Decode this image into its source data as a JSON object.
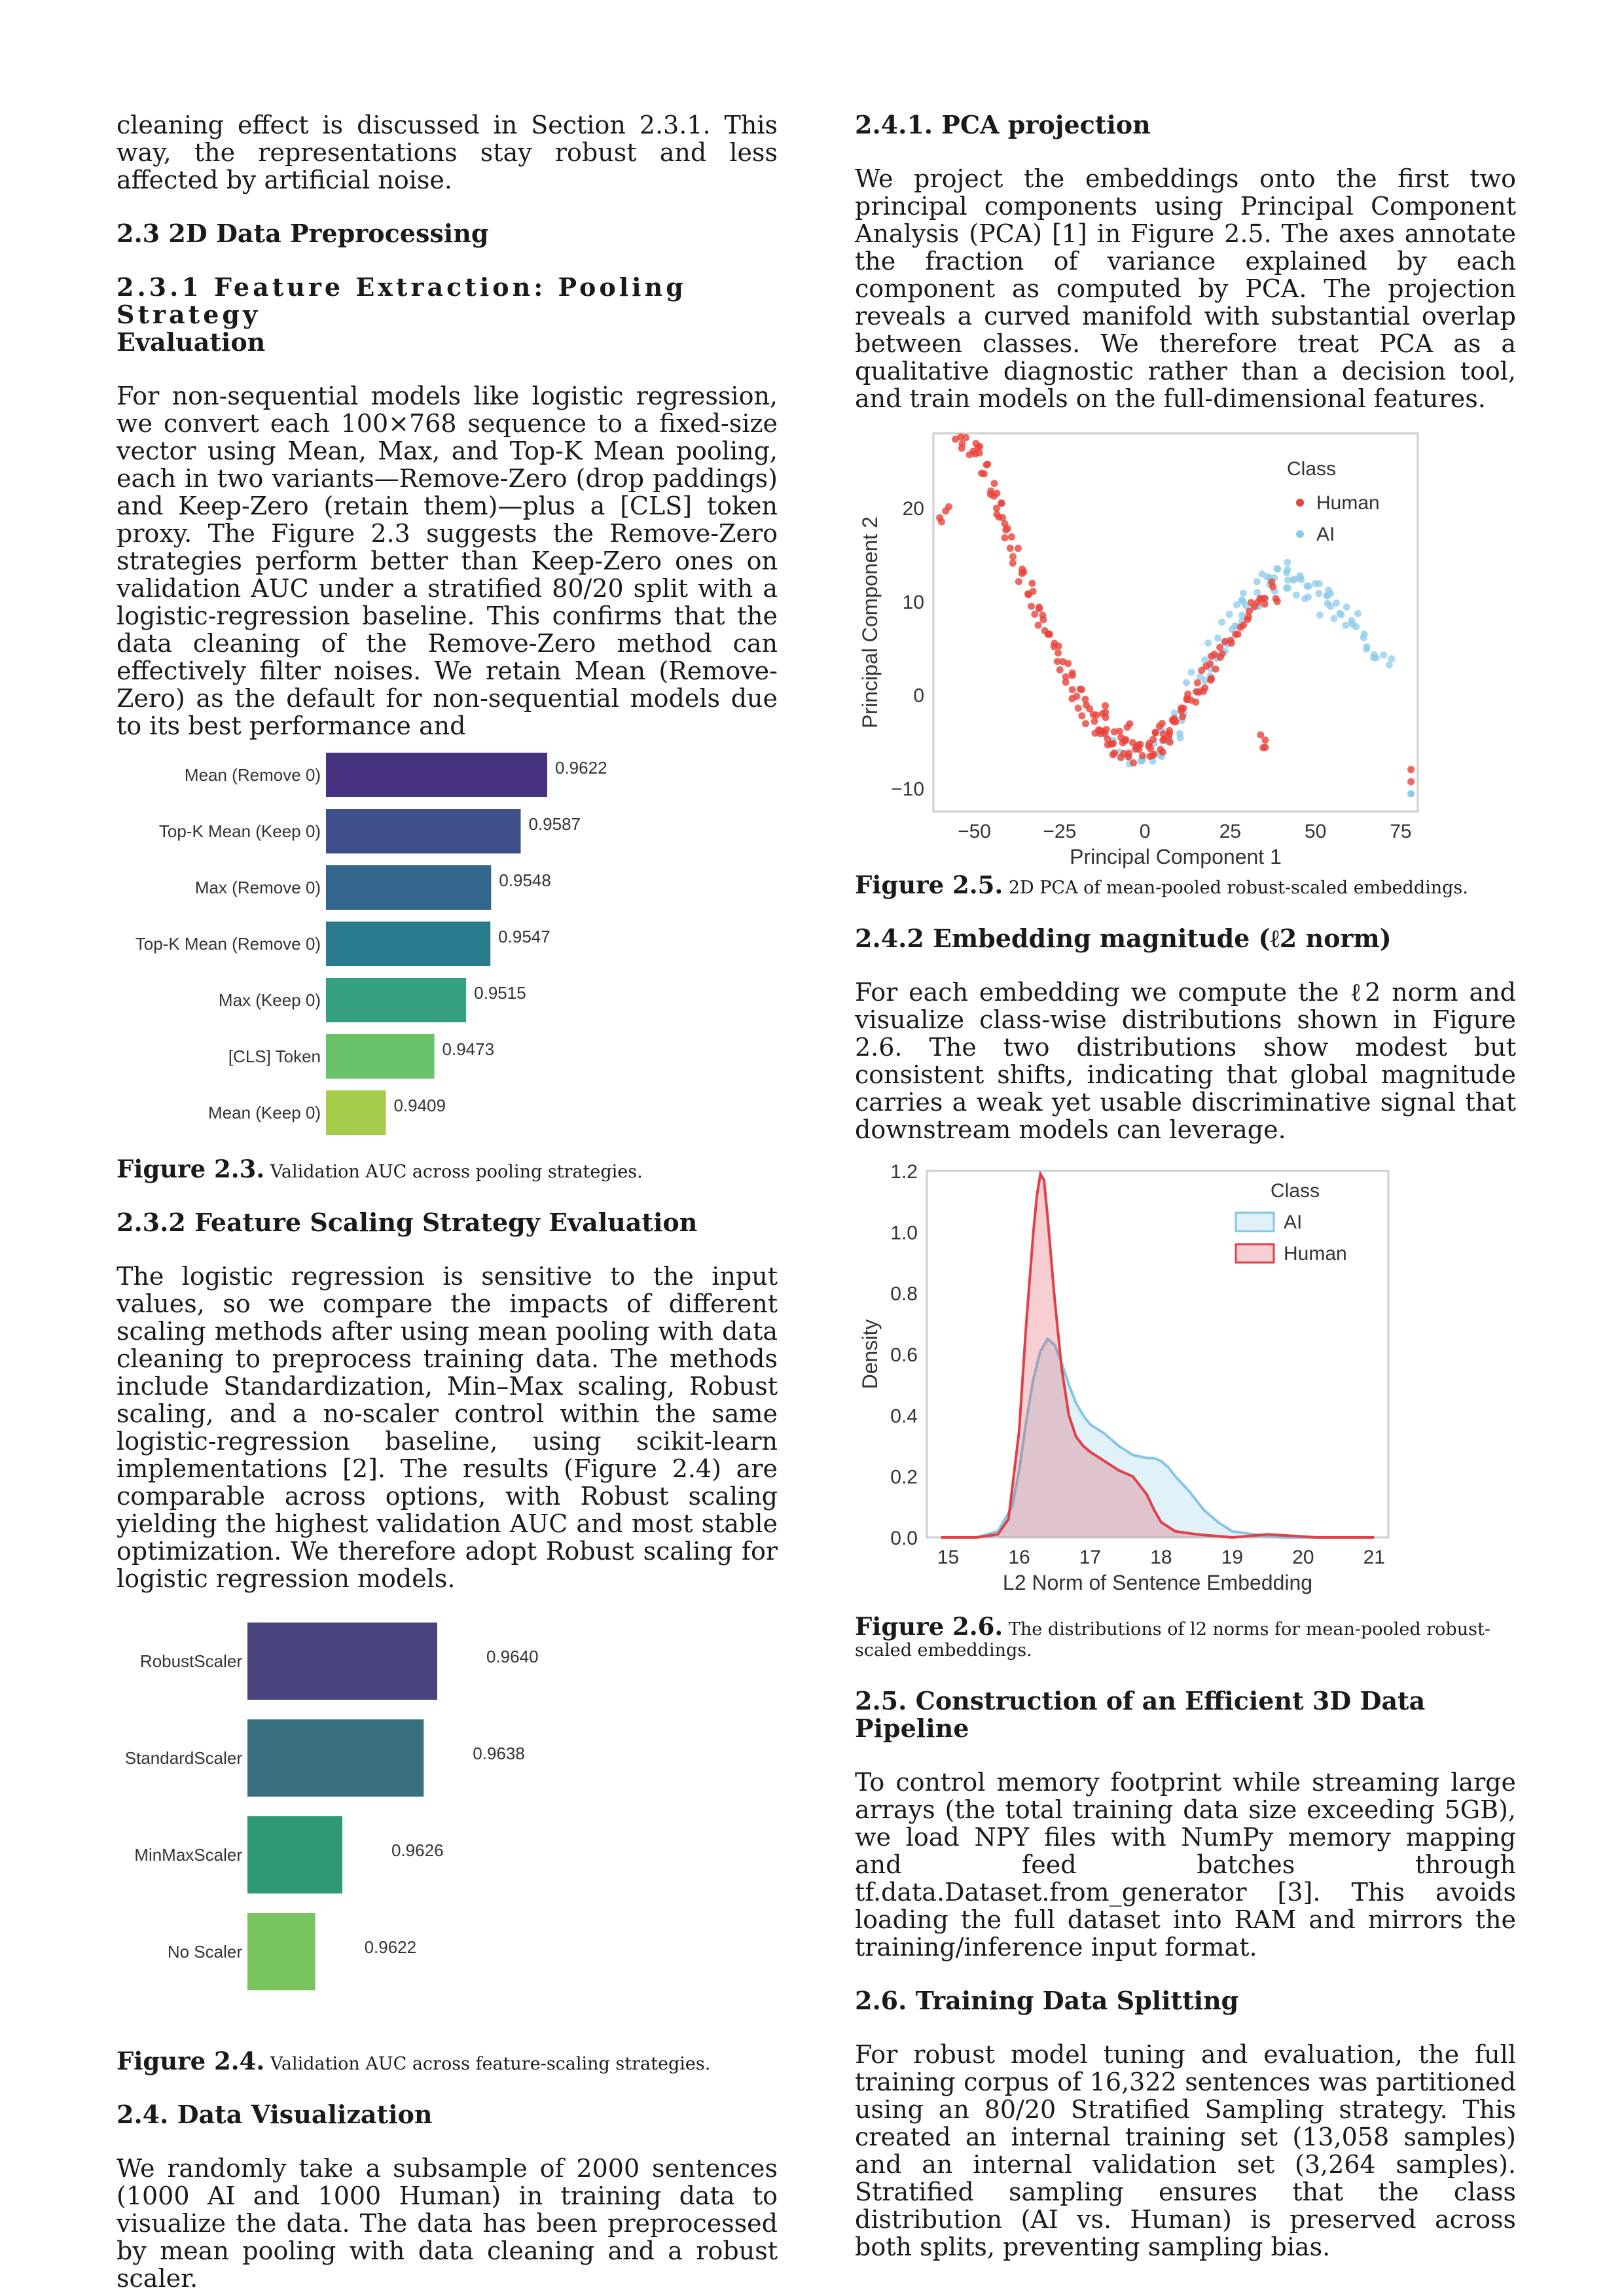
{
  "left": {
    "intro": "cleaning effect is discussed in Section 2.3.1. This way, the representations stay robust and less affected by artificial noise.",
    "sec_2_3": "2.3 2D Data Preprocessing",
    "sec_2_3_1_a": "2.3.1 Feature Extraction: Pooling Strategy",
    "sec_2_3_1_b": "Evaluation",
    "para_pooling": "For non-sequential models like logistic regression, we convert each 100×768 sequence to a fixed-size vector using Mean, Max, and Top-K Mean pooling, each in two variants—Remove-Zero (drop paddings) and Keep-Zero (retain them)—plus a [CLS] token proxy. The Figure 2.3 suggests the Remove-Zero strategies perform better than Keep-Zero ones on validation AUC under a stratified 80/20 split with a logistic-regression baseline. This confirms that the data cleaning of the Remove-Zero method can effectively filter noises. We retain Mean (Remove-Zero) as the default for non-sequential models due to its best performance and",
    "fig_2_3_label": "Figure 2.3.",
    "fig_2_3_caption": "Validation AUC across pooling strategies.",
    "sec_2_3_2": "2.3.2 Feature Scaling Strategy Evaluation",
    "para_scaling": "The logistic regression is sensitive to the input values, so we compare the impacts of different scaling methods after using mean pooling with data cleaning to preprocess training data. The methods include Standardization, Min–Max scaling, Robust scaling, and a no-scaler control within the same logistic-regression baseline, using scikit-learn implementations [2]. The results (Figure 2.4) are comparable across options, with Robust scaling yielding the highest validation AUC and most stable optimization. We therefore adopt Robust scaling for logistic regression models.",
    "fig_2_4_label": "Figure 2.4.",
    "fig_2_4_caption": "Validation AUC across feature-scaling strategies.",
    "sec_2_4": "2.4. Data Visualization",
    "para_vis": "We randomly take a subsample of 2000 sentences (1000 AI and 1000 Human) in training data to visualize the data. The data has been preprocessed by mean pooling with data cleaning and a robust scaler."
  },
  "right": {
    "sec_2_4_1": "2.4.1. PCA projection",
    "para_pca": "We project the embeddings onto the first two principal components using Principal Component Analysis (PCA) [1] in Figure 2.5. The axes annotate the fraction of variance explained by each component as computed by PCA. The projection reveals a curved manifold with substantial overlap between classes. We therefore treat PCA as a qualitative diagnostic rather than a decision tool, and train models on the full-dimensional features.",
    "fig_2_5_label": "Figure 2.5.",
    "fig_2_5_caption": "2D PCA of mean-pooled robust-scaled embeddings.",
    "sec_2_4_2": "2.4.2 Embedding magnitude (ℓ2 norm)",
    "para_norm": "For each embedding we compute the ℓ2 norm and visualize class-wise distributions shown in Figure 2.6. The two distributions show modest but consistent shifts, indicating that global magnitude carries a weak yet usable discriminative signal that downstream models can leverage.",
    "fig_2_6_label": "Figure 2.6.",
    "fig_2_6_caption_a": "The distributions of l2 norms for mean-pooled robust-",
    "fig_2_6_caption_b": "scaled embeddings.",
    "sec_2_5": "2.5. Construction of an Efficient 3D Data Pipeline",
    "para_pipeline": "To control memory footprint while streaming large arrays (the total training data size exceeding 5GB), we load NPY files with NumPy memory mapping and feed batches through tf.data.Dataset.from_generator [3]. This avoids loading the full dataset into RAM and mirrors the training/inference input format.",
    "sec_2_6": "2.6. Training Data Splitting",
    "para_split": "For robust model tuning and evaluation, the full training corpus of 16,322 sentences was partitioned using an 80/20 Stratified Sampling strategy. This created an internal training set (13,058 samples) and an internal validation set (3,264 samples). Stratified sampling ensures that the class distribution (AI vs. Human) is preserved across both splits, preventing sampling bias."
  },
  "chart_data": [
    {
      "id": "fig-2-3",
      "type": "bar",
      "orientation": "horizontal",
      "categories": [
        "Mean (Remove 0)",
        "Top-K Mean (Keep 0)",
        "Max (Remove 0)",
        "Top-K Mean (Remove 0)",
        "Max (Keep 0)",
        "[CLS] Token",
        "Mean (Keep 0)"
      ],
      "values": [
        0.9622,
        0.9587,
        0.9548,
        0.9547,
        0.9515,
        0.9473,
        0.9409
      ],
      "value_labels": [
        "0.9622",
        "0.9587",
        "0.9548",
        "0.9547",
        "0.9515",
        "0.9473",
        "0.9409"
      ],
      "colors": [
        "#46327e",
        "#3f4f8a",
        "#33668d",
        "#2a7b8e",
        "#35a07f",
        "#69c16a",
        "#a5cc4a"
      ],
      "xlim": [
        0.933,
        0.9622
      ]
    },
    {
      "id": "fig-2-4",
      "type": "bar",
      "orientation": "horizontal",
      "categories": [
        "RobustScaler",
        "StandardScaler",
        "MinMaxScaler",
        "No Scaler"
      ],
      "values": [
        0.964,
        0.9638,
        0.9626,
        0.9622
      ],
      "value_labels": [
        "0.9640",
        "0.9638",
        "0.9626",
        "0.9622"
      ],
      "colors": [
        "#48457e",
        "#38707f",
        "#2f9977",
        "#78c460"
      ],
      "xlim": [
        0.9612,
        0.964
      ]
    },
    {
      "id": "fig-2-5",
      "type": "scatter",
      "xlabel": "Principal Component 1",
      "ylabel": "Principal Component 2",
      "xlim": [
        -62,
        80
      ],
      "ylim": [
        -12.5,
        28
      ],
      "xticks": [
        -50,
        -25,
        0,
        25,
        50,
        75
      ],
      "yticks": [
        -10,
        0,
        10,
        20
      ],
      "legend_title": "Class",
      "legend_position": "top-right",
      "series": [
        {
          "name": "Human",
          "color": "#e8423a",
          "points": [
            [
              -54,
              27
            ],
            [
              -51,
              26.5
            ],
            [
              -49,
              26
            ],
            [
              -47,
              24
            ],
            [
              -59,
              19.5
            ],
            [
              -45,
              22
            ],
            [
              -43,
              21
            ],
            [
              -42,
              19
            ],
            [
              -40,
              17
            ],
            [
              -38,
              15
            ],
            [
              -36,
              13
            ],
            [
              -34,
              11
            ],
            [
              -32,
              9
            ],
            [
              -30,
              7.5
            ],
            [
              -28,
              6
            ],
            [
              -26,
              4.5
            ],
            [
              -24,
              3
            ],
            [
              -22,
              1.5
            ],
            [
              -20,
              0
            ],
            [
              -18,
              -1.2
            ],
            [
              -16,
              -2.2
            ],
            [
              -14,
              -3.2
            ],
            [
              -12,
              -4
            ],
            [
              -10,
              -4.8
            ],
            [
              -8,
              -5.3
            ],
            [
              -6,
              -5.8
            ],
            [
              -4,
              -6
            ],
            [
              -2,
              -6.2
            ],
            [
              0,
              -6.1
            ],
            [
              2,
              -5.8
            ],
            [
              4,
              -5.2
            ],
            [
              6,
              -4.4
            ],
            [
              8,
              -3.5
            ],
            [
              10,
              -2.5
            ],
            [
              12,
              -1.4
            ],
            [
              14,
              -0.2
            ],
            [
              16,
              1
            ],
            [
              18,
              2.2
            ],
            [
              20,
              3.4
            ],
            [
              23,
              5
            ],
            [
              26,
              6.4
            ],
            [
              29,
              7.8
            ],
            [
              32,
              9
            ],
            [
              35,
              10
            ],
            [
              38,
              11
            ],
            [
              34,
              -5
            ],
            [
              -12,
              -2
            ],
            [
              -6,
              -3.8
            ],
            [
              4,
              -3.5
            ]
          ]
        },
        {
          "name": "AI",
          "color": "#8ecbe8",
          "points": [
            [
              -5,
              -6.8
            ],
            [
              0,
              -6.3
            ],
            [
              6,
              -4.4
            ],
            [
              10,
              -2
            ],
            [
              14,
              0.6
            ],
            [
              18,
              3
            ],
            [
              22,
              5.6
            ],
            [
              26,
              7.6
            ],
            [
              30,
              9.6
            ],
            [
              34,
              11
            ],
            [
              38,
              12
            ],
            [
              42,
              12.3
            ],
            [
              46,
              12
            ],
            [
              50,
              11
            ],
            [
              54,
              10
            ],
            [
              58,
              8.6
            ],
            [
              62,
              7.2
            ],
            [
              66,
              5
            ],
            [
              70,
              4
            ],
            [
              -2,
              -6.5
            ],
            [
              3,
              -5.4
            ],
            [
              9,
              -3.6
            ],
            [
              16,
              2.2
            ],
            [
              24,
              6.6
            ],
            [
              31,
              10
            ],
            [
              36,
              12.6
            ],
            [
              40,
              13
            ],
            [
              44,
              11.2
            ],
            [
              49,
              9.6
            ],
            [
              55,
              8.6
            ],
            [
              60,
              7.6
            ],
            [
              66,
              4.6
            ],
            [
              -10,
              -4.6
            ],
            [
              20,
              4.6
            ],
            [
              28,
              8.6
            ],
            [
              44,
              13.4
            ],
            [
              52,
              11.8
            ]
          ]
        }
      ],
      "outliers_human": [
        [
          78,
          -9.3
        ],
        [
          78,
          -8
        ]
      ],
      "outliers_ai": [
        [
          78,
          -10.6
        ]
      ]
    },
    {
      "id": "fig-2-6",
      "type": "area",
      "xlabel": "L2 Norm of Sentence Embedding",
      "ylabel": "Density",
      "xlim": [
        14.7,
        21.2
      ],
      "ylim": [
        0,
        1.2
      ],
      "xticks": [
        15,
        16,
        17,
        18,
        19,
        20,
        21
      ],
      "yticks": [
        0.0,
        0.2,
        0.4,
        0.6,
        0.8,
        1.0,
        1.2
      ],
      "legend_title": "Class",
      "legend_position": "top-right",
      "series": [
        {
          "name": "AI",
          "color": "#86c6e3",
          "x": [
            14.9,
            15.4,
            15.7,
            15.9,
            16.0,
            16.1,
            16.2,
            16.3,
            16.4,
            16.5,
            16.6,
            16.7,
            16.8,
            16.9,
            17.0,
            17.2,
            17.4,
            17.6,
            17.8,
            17.9,
            18.0,
            18.1,
            18.2,
            18.4,
            18.6,
            18.8,
            19.0,
            19.3,
            19.7,
            20.2,
            21.0
          ],
          "y": [
            0.0,
            0.0,
            0.02,
            0.1,
            0.22,
            0.38,
            0.52,
            0.61,
            0.65,
            0.63,
            0.57,
            0.5,
            0.44,
            0.4,
            0.37,
            0.34,
            0.3,
            0.27,
            0.26,
            0.26,
            0.25,
            0.23,
            0.2,
            0.15,
            0.09,
            0.05,
            0.02,
            0.01,
            0.0,
            0.0,
            0.0
          ]
        },
        {
          "name": "Human",
          "color": "#e0404a",
          "x": [
            14.9,
            15.4,
            15.7,
            15.85,
            16.0,
            16.1,
            16.2,
            16.25,
            16.3,
            16.35,
            16.4,
            16.5,
            16.6,
            16.7,
            16.8,
            16.9,
            17.0,
            17.2,
            17.4,
            17.6,
            17.8,
            17.9,
            18.0,
            18.2,
            18.5,
            19.0,
            19.5,
            20.2,
            21.0
          ],
          "y": [
            0.0,
            0.0,
            0.01,
            0.06,
            0.35,
            0.7,
            1.0,
            1.12,
            1.19,
            1.17,
            1.05,
            0.78,
            0.55,
            0.4,
            0.33,
            0.3,
            0.28,
            0.25,
            0.22,
            0.2,
            0.14,
            0.09,
            0.05,
            0.02,
            0.01,
            0.0,
            0.01,
            0.0,
            0.0
          ]
        }
      ]
    }
  ]
}
